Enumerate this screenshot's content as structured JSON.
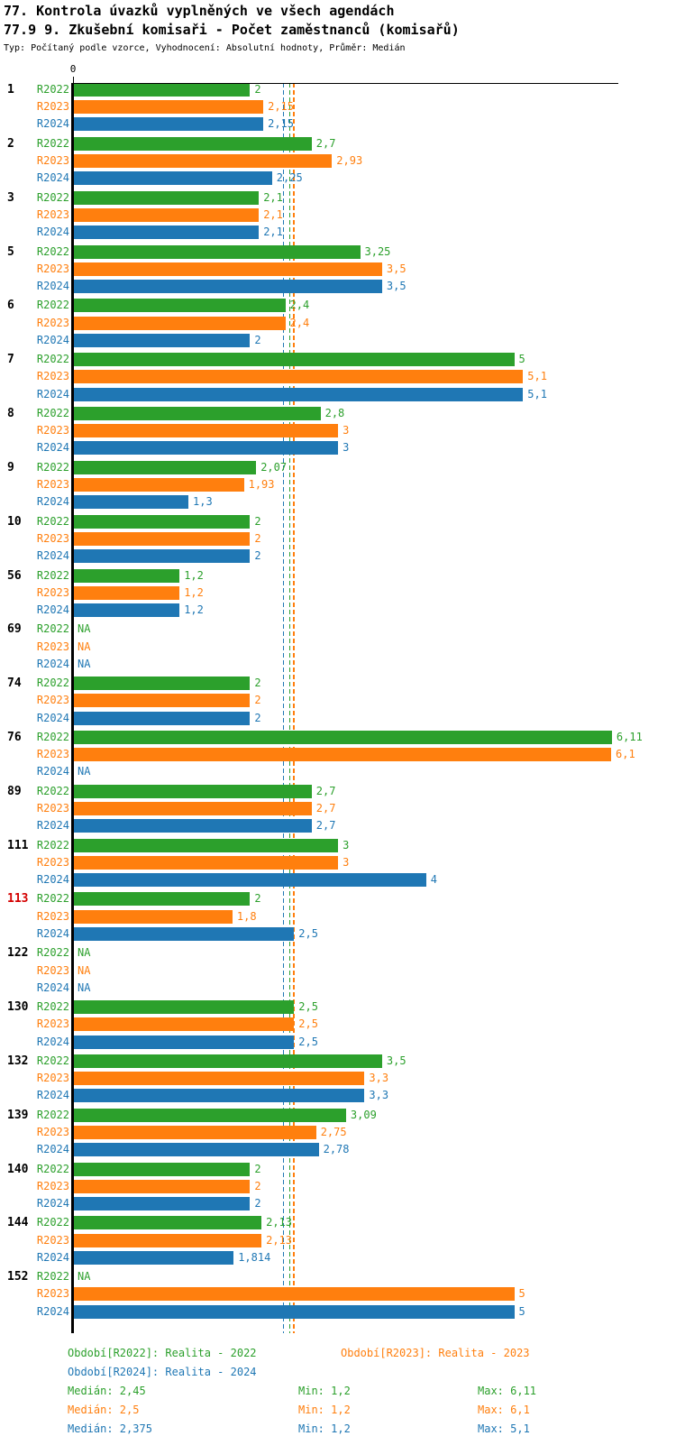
{
  "header": {
    "title1": "77. Kontrola úvazků vyplněných ve všech agendách",
    "title2": "77.9 9. Zkušební komisaři - Počet zaměstnanců (komisařů)",
    "subtitle": "Typ: Počítaný podle vzorce, Vyhodnocení: Absolutní hodnoty, Průměr: Medián"
  },
  "axis": {
    "zero_label": "0"
  },
  "colors": {
    "r2022": "#2CA02C",
    "r2023": "#FF7F0E",
    "r2024": "#1F77B4",
    "highlight_id": "#D40000",
    "axis": "#000000"
  },
  "chart_data": {
    "type": "bar",
    "orientation": "horizontal",
    "series": [
      "R2022",
      "R2023",
      "R2024"
    ],
    "xlim": [
      0,
      6.2
    ],
    "na_label": "NA",
    "groups": [
      {
        "id": "1",
        "highlight": false,
        "values": [
          2,
          2.15,
          2.15
        ],
        "labels": [
          "2",
          "2,15",
          "2,15"
        ]
      },
      {
        "id": "2",
        "highlight": false,
        "values": [
          2.7,
          2.93,
          2.25
        ],
        "labels": [
          "2,7",
          "2,93",
          "2,25"
        ]
      },
      {
        "id": "3",
        "highlight": false,
        "values": [
          2.1,
          2.1,
          2.1
        ],
        "labels": [
          "2,1",
          "2,1",
          "2,1"
        ]
      },
      {
        "id": "5",
        "highlight": false,
        "values": [
          3.25,
          3.5,
          3.5
        ],
        "labels": [
          "3,25",
          "3,5",
          "3,5"
        ]
      },
      {
        "id": "6",
        "highlight": false,
        "values": [
          2.4,
          2.4,
          2
        ],
        "labels": [
          "2,4",
          "2,4",
          "2"
        ]
      },
      {
        "id": "7",
        "highlight": false,
        "values": [
          5,
          5.1,
          5.1
        ],
        "labels": [
          "5",
          "5,1",
          "5,1"
        ]
      },
      {
        "id": "8",
        "highlight": false,
        "values": [
          2.8,
          3,
          3
        ],
        "labels": [
          "2,8",
          "3",
          "3"
        ]
      },
      {
        "id": "9",
        "highlight": false,
        "values": [
          2.07,
          1.93,
          1.3
        ],
        "labels": [
          "2,07",
          "1,93",
          "1,3"
        ]
      },
      {
        "id": "10",
        "highlight": false,
        "values": [
          2,
          2,
          2
        ],
        "labels": [
          "2",
          "2",
          "2"
        ]
      },
      {
        "id": "56",
        "highlight": false,
        "values": [
          1.2,
          1.2,
          1.2
        ],
        "labels": [
          "1,2",
          "1,2",
          "1,2"
        ]
      },
      {
        "id": "69",
        "highlight": false,
        "values": [
          null,
          null,
          null
        ],
        "labels": [
          "NA",
          "NA",
          "NA"
        ]
      },
      {
        "id": "74",
        "highlight": false,
        "values": [
          2,
          2,
          2
        ],
        "labels": [
          "2",
          "2",
          "2"
        ]
      },
      {
        "id": "76",
        "highlight": false,
        "values": [
          6.11,
          6.1,
          null
        ],
        "labels": [
          "6,11",
          "6,1",
          "NA"
        ]
      },
      {
        "id": "89",
        "highlight": false,
        "values": [
          2.7,
          2.7,
          2.7
        ],
        "labels": [
          "2,7",
          "2,7",
          "2,7"
        ]
      },
      {
        "id": "111",
        "highlight": false,
        "values": [
          3,
          3,
          4
        ],
        "labels": [
          "3",
          "3",
          "4"
        ]
      },
      {
        "id": "113",
        "highlight": true,
        "values": [
          2,
          1.8,
          2.5
        ],
        "labels": [
          "2",
          "1,8",
          "2,5"
        ]
      },
      {
        "id": "122",
        "highlight": false,
        "values": [
          null,
          null,
          null
        ],
        "labels": [
          "NA",
          "NA",
          "NA"
        ]
      },
      {
        "id": "130",
        "highlight": false,
        "values": [
          2.5,
          2.5,
          2.5
        ],
        "labels": [
          "2,5",
          "2,5",
          "2,5"
        ]
      },
      {
        "id": "132",
        "highlight": false,
        "values": [
          3.5,
          3.3,
          3.3
        ],
        "labels": [
          "3,5",
          "3,3",
          "3,3"
        ]
      },
      {
        "id": "139",
        "highlight": false,
        "values": [
          3.09,
          2.75,
          2.78
        ],
        "labels": [
          "3,09",
          "2,75",
          "2,78"
        ]
      },
      {
        "id": "140",
        "highlight": false,
        "values": [
          2,
          2,
          2
        ],
        "labels": [
          "2",
          "2",
          "2"
        ]
      },
      {
        "id": "144",
        "highlight": false,
        "values": [
          2.13,
          2.13,
          1.814
        ],
        "labels": [
          "2,13",
          "2,13",
          "1,814"
        ]
      },
      {
        "id": "152",
        "highlight": false,
        "values": [
          null,
          5,
          5
        ],
        "labels": [
          "NA",
          "5",
          "5"
        ]
      }
    ],
    "median_lines": [
      {
        "series": "R2024",
        "value": 2.375
      },
      {
        "series": "R2022",
        "value": 2.45
      },
      {
        "series": "R2023",
        "value": 2.5
      }
    ]
  },
  "legend": {
    "periods": [
      {
        "series": "R2022",
        "label": "Období[R2022]: Realita - 2022"
      },
      {
        "series": "R2023",
        "label": "Období[R2023]: Realita - 2023"
      },
      {
        "series": "R2024",
        "label": "Období[R2024]: Realita - 2024"
      }
    ],
    "stats": [
      {
        "series": "R2022",
        "median": "Medián: 2,45",
        "min": "Min: 1,2",
        "max": "Max: 6,11"
      },
      {
        "series": "R2023",
        "median": "Medián: 2,5",
        "min": "Min: 1,2",
        "max": "Max: 6,1"
      },
      {
        "series": "R2024",
        "median": "Medián: 2,375",
        "min": "Min: 1,2",
        "max": "Max: 5,1"
      }
    ]
  }
}
